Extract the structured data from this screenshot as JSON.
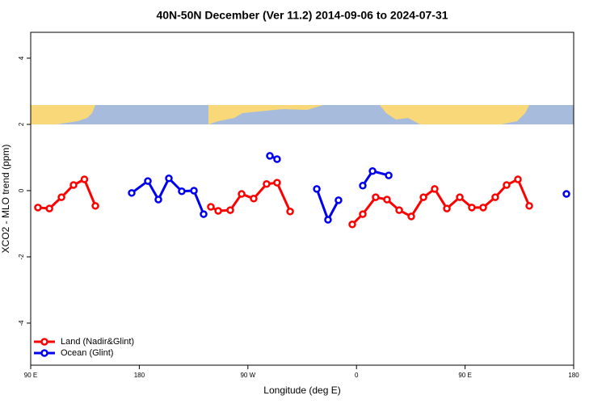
{
  "chart_data": {
    "type": "line",
    "title": "40N-50N December (Ver 11.2)   2014-09-06 to 2024-07-31",
    "x_label": "Longitude (deg E)",
    "y_label": "XCO2 - MLO trend (ppm)",
    "xlim": [
      90,
      540
    ],
    "xticks": [
      {
        "value": 90,
        "label": "90 E"
      },
      {
        "value": 180,
        "label": "180"
      },
      {
        "value": 270,
        "label": "90 W"
      },
      {
        "value": 360,
        "label": "0"
      },
      {
        "value": 450,
        "label": "90 E"
      },
      {
        "value": 540,
        "label": "180"
      }
    ],
    "ylim": [
      -5.27,
      4.78
    ],
    "yticks": [
      -4,
      -2,
      0,
      2,
      4
    ],
    "legend": "bottom-left",
    "series": [
      {
        "name": "Land (Nadir&Glint)",
        "color": "#ff0000",
        "x": [
          96,
          105.5,
          115.5,
          125.5,
          134.5,
          143.6,
          null,
          239.3,
          245.4,
          255.4,
          264.8,
          274.8,
          285.5,
          294.2,
          305,
          null,
          356.5,
          365.2,
          375.9,
          385.3,
          395.4,
          405.4,
          415.5,
          424.8,
          434.9,
          445.6,
          455.6,
          465,
          475,
          484.4,
          493.8,
          503.2
        ],
        "values": [
          -0.51,
          -0.54,
          -0.2,
          0.17,
          0.34,
          -0.46,
          null,
          -0.49,
          -0.61,
          -0.59,
          -0.1,
          -0.24,
          0.2,
          0.24,
          -0.63,
          null,
          -1.02,
          -0.71,
          -0.2,
          -0.27,
          -0.59,
          -0.78,
          -0.2,
          0.05,
          -0.54,
          -0.2,
          -0.51,
          -0.51,
          -0.2,
          0.17,
          0.34,
          -0.46
        ]
      },
      {
        "name": "Ocean (Glint)",
        "color": "#0000ee",
        "x": [
          173.7,
          187.1,
          195.8,
          204.5,
          215.2,
          225.3,
          233.3,
          null,
          288.2,
          294.2,
          null,
          327.1,
          336.4,
          345.1,
          null,
          365.2,
          373.3,
          386.7,
          null,
          534
        ],
        "values": [
          -0.07,
          0.29,
          -0.27,
          0.37,
          -0.02,
          0,
          -0.71,
          null,
          1.05,
          0.95,
          null,
          0.05,
          -0.88,
          -0.29,
          null,
          0.15,
          0.59,
          0.46,
          null,
          -0.1
        ]
      }
    ]
  }
}
